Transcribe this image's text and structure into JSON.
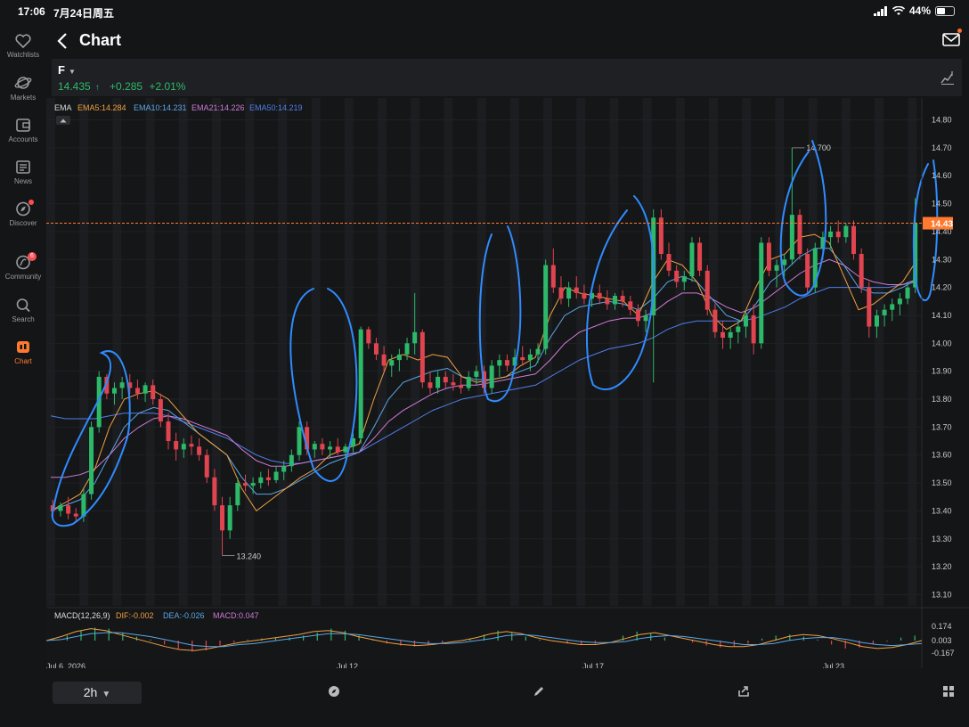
{
  "status": {
    "time": "17:06",
    "date": "7月24日周五",
    "battery": "44%"
  },
  "sidebar": {
    "items": [
      {
        "label": "Watchlists",
        "icon": "heart-icon"
      },
      {
        "label": "Markets",
        "icon": "planet-icon"
      },
      {
        "label": "Accounts",
        "icon": "wallet-icon"
      },
      {
        "label": "News",
        "icon": "news-icon"
      },
      {
        "label": "Discover",
        "icon": "compass-icon"
      },
      {
        "label": "Community",
        "icon": "community-icon",
        "badge": "6"
      },
      {
        "label": "Search",
        "icon": "search-icon"
      },
      {
        "label": "Chart",
        "icon": "candlestick-icon",
        "active": true
      }
    ]
  },
  "header": {
    "title": "Chart"
  },
  "quote": {
    "ticker": "F",
    "price": "14.435",
    "arrow": "↑",
    "change": "+0.285",
    "change_pct": "+2.01%"
  },
  "indicators": {
    "ema_title": "EMA",
    "ema5": "EMA5:14.284",
    "ema10": "EMA10:14.231",
    "ema21": "EMA21:14.226",
    "ema50": "EMA50:14.219",
    "macd_title": "MACD(12,26,9)",
    "dif": "DIF:-0.002",
    "dea": "DEA:-0.026",
    "macd": "MACD:0.047"
  },
  "colors": {
    "up": "#2db96a",
    "down": "#e0444f",
    "ema5": "#f0a040",
    "ema10": "#5aa7e6",
    "ema21": "#d07ad8",
    "ema50": "#4f7fe8",
    "annotation": "#2f8cff",
    "accent": "#ff7a2f"
  },
  "chart_data": {
    "type": "candlestick",
    "interval": "2h",
    "y_ticks": [
      "14.80",
      "14.70",
      "14.60",
      "14.50",
      "14.40",
      "14.30",
      "14.20",
      "14.10",
      "14.00",
      "13.90",
      "13.80",
      "13.70",
      "13.60",
      "13.50",
      "13.40",
      "13.30",
      "13.20",
      "13.10"
    ],
    "ylim": [
      13.06,
      14.84
    ],
    "current_price_label": "14.43",
    "high_label": "14.700",
    "low_label": "13.240",
    "x_labels": [
      "Jul 6, 2026",
      "Jul 12",
      "Jul 17",
      "Jul 23"
    ],
    "macd_ticks": [
      "0.174",
      "0.003",
      "-0.167"
    ],
    "candles": [
      [
        13.42,
        13.44,
        13.38,
        13.4
      ],
      [
        13.4,
        13.43,
        13.38,
        13.42
      ],
      [
        13.42,
        13.45,
        13.37,
        13.39
      ],
      [
        13.39,
        13.41,
        13.36,
        13.38
      ],
      [
        13.38,
        13.48,
        13.36,
        13.46
      ],
      [
        13.46,
        13.72,
        13.44,
        13.7
      ],
      [
        13.7,
        13.9,
        13.68,
        13.88
      ],
      [
        13.88,
        13.89,
        13.8,
        13.82
      ],
      [
        13.82,
        13.86,
        13.78,
        13.84
      ],
      [
        13.84,
        13.88,
        13.8,
        13.86
      ],
      [
        13.86,
        13.89,
        13.82,
        13.84
      ],
      [
        13.84,
        13.87,
        13.8,
        13.82
      ],
      [
        13.82,
        13.86,
        13.79,
        13.85
      ],
      [
        13.85,
        13.87,
        13.78,
        13.8
      ],
      [
        13.8,
        13.82,
        13.7,
        13.72
      ],
      [
        13.72,
        13.75,
        13.62,
        13.65
      ],
      [
        13.65,
        13.68,
        13.58,
        13.62
      ],
      [
        13.62,
        13.66,
        13.59,
        13.64
      ],
      [
        13.64,
        13.67,
        13.6,
        13.63
      ],
      [
        13.63,
        13.66,
        13.58,
        13.6
      ],
      [
        13.6,
        13.62,
        13.5,
        13.52
      ],
      [
        13.52,
        13.55,
        13.4,
        13.42
      ],
      [
        13.42,
        13.45,
        13.24,
        13.33
      ],
      [
        13.33,
        13.45,
        13.3,
        13.42
      ],
      [
        13.42,
        13.52,
        13.4,
        13.5
      ],
      [
        13.5,
        13.53,
        13.47,
        13.49
      ],
      [
        13.49,
        13.52,
        13.46,
        13.5
      ],
      [
        13.5,
        13.54,
        13.48,
        13.52
      ],
      [
        13.52,
        13.55,
        13.49,
        13.51
      ],
      [
        13.51,
        13.56,
        13.5,
        13.54
      ],
      [
        13.54,
        13.58,
        13.51,
        13.56
      ],
      [
        13.56,
        13.62,
        13.54,
        13.6
      ],
      [
        13.6,
        13.72,
        13.58,
        13.7
      ],
      [
        13.7,
        13.72,
        13.6,
        13.62
      ],
      [
        13.62,
        13.65,
        13.59,
        13.64
      ],
      [
        13.64,
        13.66,
        13.6,
        13.62
      ],
      [
        13.62,
        13.65,
        13.59,
        13.63
      ],
      [
        13.63,
        13.66,
        13.6,
        13.61
      ],
      [
        13.61,
        13.64,
        13.59,
        13.63
      ],
      [
        13.63,
        13.68,
        13.61,
        13.66
      ],
      [
        13.66,
        14.06,
        13.64,
        14.05
      ],
      [
        14.05,
        14.06,
        13.98,
        14.0
      ],
      [
        14.0,
        14.02,
        13.94,
        13.96
      ],
      [
        13.96,
        13.99,
        13.9,
        13.92
      ],
      [
        13.92,
        13.96,
        13.88,
        13.94
      ],
      [
        13.94,
        13.98,
        13.9,
        13.96
      ],
      [
        13.96,
        14.02,
        13.94,
        14.0
      ],
      [
        14.0,
        14.18,
        13.96,
        14.04
      ],
      [
        14.04,
        14.05,
        13.84,
        13.86
      ],
      [
        13.86,
        13.9,
        13.82,
        13.84
      ],
      [
        13.84,
        13.9,
        13.82,
        13.88
      ],
      [
        13.88,
        13.9,
        13.84,
        13.86
      ],
      [
        13.86,
        13.89,
        13.83,
        13.85
      ],
      [
        13.85,
        13.88,
        13.82,
        13.84
      ],
      [
        13.84,
        13.9,
        13.83,
        13.88
      ],
      [
        13.88,
        13.92,
        13.85,
        13.9
      ],
      [
        13.9,
        13.92,
        13.82,
        13.84
      ],
      [
        13.84,
        13.94,
        13.82,
        13.92
      ],
      [
        13.92,
        13.96,
        13.88,
        13.94
      ],
      [
        13.94,
        13.96,
        13.9,
        13.92
      ],
      [
        13.92,
        13.98,
        13.9,
        13.95
      ],
      [
        13.95,
        13.99,
        13.92,
        13.94
      ],
      [
        13.94,
        13.98,
        13.9,
        13.96
      ],
      [
        13.96,
        14.0,
        13.93,
        13.98
      ],
      [
        13.98,
        14.3,
        13.96,
        14.28
      ],
      [
        14.28,
        14.34,
        14.18,
        14.2
      ],
      [
        14.2,
        14.24,
        14.14,
        14.16
      ],
      [
        14.16,
        14.22,
        14.13,
        14.2
      ],
      [
        14.2,
        14.24,
        14.16,
        14.18
      ],
      [
        14.18,
        14.21,
        14.14,
        14.16
      ],
      [
        14.16,
        14.2,
        14.13,
        14.18
      ],
      [
        14.18,
        14.21,
        14.14,
        14.16
      ],
      [
        14.16,
        14.19,
        14.12,
        14.14
      ],
      [
        14.14,
        14.18,
        14.12,
        14.17
      ],
      [
        14.17,
        14.19,
        14.13,
        14.15
      ],
      [
        14.15,
        14.17,
        14.1,
        14.12
      ],
      [
        14.12,
        14.14,
        14.06,
        14.08
      ],
      [
        14.08,
        14.12,
        14.04,
        14.1
      ],
      [
        14.1,
        14.48,
        13.86,
        14.45
      ],
      [
        14.45,
        14.48,
        14.3,
        14.32
      ],
      [
        14.32,
        14.36,
        14.24,
        14.26
      ],
      [
        14.26,
        14.28,
        14.2,
        14.22
      ],
      [
        14.22,
        14.26,
        14.19,
        14.24
      ],
      [
        14.24,
        14.38,
        14.22,
        14.36
      ],
      [
        14.36,
        14.38,
        14.24,
        14.26
      ],
      [
        14.26,
        14.28,
        14.1,
        14.12
      ],
      [
        14.12,
        14.14,
        14.02,
        14.04
      ],
      [
        14.04,
        14.08,
        13.98,
        14.02
      ],
      [
        14.02,
        14.06,
        13.98,
        14.04
      ],
      [
        14.04,
        14.08,
        14.0,
        14.06
      ],
      [
        14.06,
        14.12,
        14.02,
        14.1
      ],
      [
        14.1,
        14.14,
        13.96,
        14.0
      ],
      [
        14.0,
        14.38,
        13.98,
        14.36
      ],
      [
        14.36,
        14.38,
        14.24,
        14.26
      ],
      [
        14.26,
        14.3,
        14.2,
        14.28
      ],
      [
        14.28,
        14.32,
        14.24,
        14.3
      ],
      [
        14.3,
        14.7,
        14.28,
        14.46
      ],
      [
        14.46,
        14.48,
        14.3,
        14.32
      ],
      [
        14.32,
        14.34,
        14.18,
        14.2
      ],
      [
        14.2,
        14.36,
        14.18,
        14.34
      ],
      [
        14.34,
        14.4,
        14.3,
        14.38
      ],
      [
        14.38,
        14.42,
        14.34,
        14.4
      ],
      [
        14.4,
        14.44,
        14.36,
        14.38
      ],
      [
        14.38,
        14.43,
        14.36,
        14.42
      ],
      [
        14.42,
        14.44,
        14.3,
        14.32
      ],
      [
        14.32,
        14.34,
        14.18,
        14.2
      ],
      [
        14.2,
        14.22,
        14.02,
        14.06
      ],
      [
        14.06,
        14.12,
        14.02,
        14.1
      ],
      [
        14.1,
        14.14,
        14.06,
        14.12
      ],
      [
        14.12,
        14.16,
        14.08,
        14.14
      ],
      [
        14.14,
        14.18,
        14.1,
        14.16
      ],
      [
        14.16,
        14.22,
        14.14,
        14.2
      ],
      [
        14.2,
        14.52,
        14.18,
        14.43
      ]
    ],
    "ema5": [
      13.4,
      13.43,
      13.46,
      13.55,
      13.7,
      13.8,
      13.82,
      13.83,
      13.8,
      13.74,
      13.68,
      13.64,
      13.6,
      13.48,
      13.4,
      13.44,
      13.48,
      13.52,
      13.55,
      13.6,
      13.62,
      13.64,
      13.8,
      13.94,
      13.96,
      13.94,
      13.96,
      13.95,
      13.88,
      13.86,
      13.87,
      13.88,
      13.92,
      13.95,
      14.1,
      14.2,
      14.18,
      14.17,
      14.16,
      14.15,
      14.1,
      14.22,
      14.3,
      14.28,
      14.22,
      14.1,
      14.05,
      14.08,
      14.2,
      14.3,
      14.32,
      14.38,
      14.39,
      14.36,
      14.24,
      14.12,
      14.14,
      14.18,
      14.22,
      14.3
    ],
    "ema10": [
      13.4,
      13.42,
      13.44,
      13.5,
      13.6,
      13.7,
      13.75,
      13.77,
      13.76,
      13.72,
      13.68,
      13.64,
      13.6,
      13.52,
      13.46,
      13.46,
      13.48,
      13.51,
      13.54,
      13.57,
      13.59,
      13.61,
      13.7,
      13.8,
      13.86,
      13.88,
      13.9,
      13.91,
      13.88,
      13.87,
      13.87,
      13.88,
      13.9,
      13.92,
      14.02,
      14.1,
      14.13,
      14.14,
      14.15,
      14.14,
      14.12,
      14.16,
      14.22,
      14.24,
      14.22,
      14.16,
      14.1,
      14.08,
      14.14,
      14.22,
      14.26,
      14.31,
      14.34,
      14.34,
      14.28,
      14.2,
      14.18,
      14.18,
      14.2,
      14.23
    ],
    "ema21": [
      13.52,
      13.52,
      13.53,
      13.55,
      13.6,
      13.66,
      13.7,
      13.73,
      13.74,
      13.73,
      13.71,
      13.69,
      13.67,
      13.62,
      13.58,
      13.56,
      13.56,
      13.57,
      13.58,
      13.59,
      13.6,
      13.61,
      13.66,
      13.72,
      13.76,
      13.79,
      13.82,
      13.84,
      13.85,
      13.85,
      13.86,
      13.87,
      13.88,
      13.89,
      13.94,
      14.0,
      14.04,
      14.06,
      14.08,
      14.09,
      14.09,
      14.11,
      14.15,
      14.18,
      14.18,
      14.16,
      14.13,
      14.11,
      14.13,
      14.17,
      14.21,
      14.25,
      14.28,
      14.3,
      14.28,
      14.24,
      14.22,
      14.21,
      14.21,
      14.23
    ],
    "ema50": [
      13.74,
      13.73,
      13.73,
      13.73,
      13.74,
      13.75,
      13.75,
      13.75,
      13.74,
      13.72,
      13.7,
      13.68,
      13.66,
      13.63,
      13.6,
      13.58,
      13.57,
      13.57,
      13.58,
      13.59,
      13.6,
      13.61,
      13.64,
      13.67,
      13.7,
      13.73,
      13.76,
      13.78,
      13.8,
      13.81,
      13.82,
      13.83,
      13.84,
      13.85,
      13.88,
      13.91,
      13.94,
      13.96,
      13.98,
      13.99,
      14.0,
      14.02,
      14.05,
      14.07,
      14.08,
      14.08,
      14.08,
      14.08,
      14.09,
      14.11,
      14.13,
      14.16,
      14.18,
      14.2,
      14.2,
      14.2,
      14.2,
      14.2,
      14.21,
      14.22
    ],
    "macd_hist": [
      0.02,
      0.05,
      0.1,
      0.13,
      0.12,
      0.08,
      0.04,
      0.01,
      -0.04,
      -0.08,
      -0.11,
      -0.1,
      -0.06,
      -0.02,
      0.01,
      0.02,
      0.03,
      0.03,
      0.05,
      0.08,
      0.12,
      0.1,
      0.05,
      0.01,
      -0.03,
      -0.05,
      -0.06,
      -0.04,
      -0.02,
      0.0,
      0.02,
      0.06,
      0.1,
      0.08,
      0.04,
      0.01,
      -0.01,
      -0.03,
      -0.04,
      -0.03,
      0.0,
      0.05,
      0.09,
      0.07,
      0.03,
      0.0,
      -0.02,
      -0.05,
      -0.07,
      -0.06,
      -0.03,
      0.02,
      0.05,
      0.06,
      0.04,
      0.01,
      -0.04,
      -0.08,
      -0.07,
      -0.04,
      -0.01,
      0.03,
      0.05
    ],
    "macd_dif": [
      0.0,
      0.04,
      0.09,
      0.12,
      0.1,
      0.06,
      0.02,
      -0.02,
      -0.06,
      -0.09,
      -0.1,
      -0.08,
      -0.05,
      -0.02,
      0.0,
      0.02,
      0.04,
      0.06,
      0.09,
      0.1,
      0.08,
      0.04,
      0.01,
      -0.02,
      -0.04,
      -0.05,
      -0.04,
      -0.02,
      0.0,
      0.03,
      0.07,
      0.09,
      0.07,
      0.03,
      0.0,
      -0.02,
      -0.04,
      -0.04,
      -0.02,
      0.02,
      0.06,
      0.08,
      0.05,
      0.02,
      -0.01,
      -0.04,
      -0.06,
      -0.06,
      -0.04,
      0.0,
      0.04,
      0.06,
      0.05,
      0.02,
      -0.02,
      -0.06,
      -0.08,
      -0.07,
      -0.04,
      0.0
    ],
    "macd_dea": [
      0.0,
      0.01,
      0.04,
      0.07,
      0.08,
      0.08,
      0.06,
      0.04,
      0.01,
      -0.02,
      -0.05,
      -0.06,
      -0.06,
      -0.04,
      -0.03,
      -0.01,
      0.01,
      0.03,
      0.05,
      0.07,
      0.07,
      0.06,
      0.04,
      0.02,
      0.0,
      -0.02,
      -0.03,
      -0.03,
      -0.02,
      0.0,
      0.02,
      0.05,
      0.06,
      0.05,
      0.03,
      0.01,
      -0.01,
      -0.02,
      -0.02,
      -0.01,
      0.02,
      0.04,
      0.05,
      0.04,
      0.02,
      0.0,
      -0.02,
      -0.04,
      -0.04,
      -0.03,
      0.0,
      0.02,
      0.03,
      0.03,
      0.01,
      -0.02,
      -0.04,
      -0.05,
      -0.04,
      -0.03
    ],
    "annotations": "hand-drawn blue ellipses circling each rally"
  },
  "bottom": {
    "interval": "2h"
  }
}
